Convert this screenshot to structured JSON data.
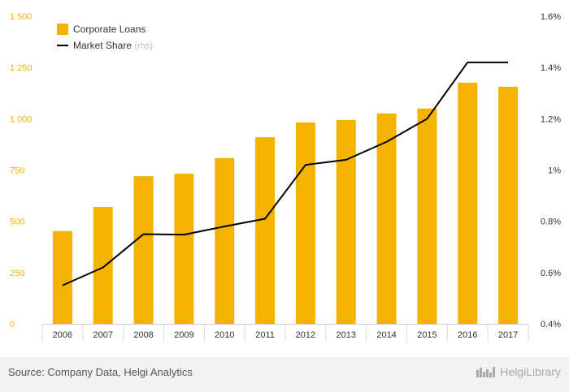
{
  "chart_data": {
    "type": "bar",
    "categories": [
      "2006",
      "2007",
      "2008",
      "2009",
      "2010",
      "2011",
      "2012",
      "2013",
      "2014",
      "2015",
      "2016",
      "2017"
    ],
    "series": [
      {
        "name": "Corporate Loans",
        "type": "bar",
        "axis": "left",
        "color": "#f5b301",
        "values": [
          452,
          570,
          720,
          732,
          808,
          910,
          982,
          994,
          1026,
          1050,
          1176,
          1156
        ]
      },
      {
        "name": "Market Share",
        "legend_suffix": "(rhs)",
        "type": "line",
        "axis": "right",
        "color": "#000000",
        "values": [
          0.55,
          0.62,
          0.75,
          0.748,
          0.78,
          0.81,
          1.02,
          1.04,
          1.11,
          1.2,
          1.42,
          1.42
        ]
      }
    ],
    "y_left": {
      "ylim": [
        0,
        1500
      ],
      "ticks": [
        0,
        250,
        500,
        750,
        1000,
        1250,
        1500
      ],
      "tick_labels": [
        "0",
        "250",
        "500",
        "750",
        "1 000",
        "1 250",
        "1 500"
      ],
      "color": "#f5b301"
    },
    "y_right": {
      "ylim": [
        0.4,
        1.6
      ],
      "ticks": [
        0.4,
        0.6,
        0.8,
        1.0,
        1.2,
        1.4,
        1.6
      ],
      "tick_labels": [
        "0.4%",
        "0.6%",
        "0.8%",
        "1%",
        "1.2%",
        "1.4%",
        "1.6%"
      ]
    },
    "grid": false,
    "legend": {
      "placement": "top-left"
    }
  },
  "footer": {
    "source": "Source: Company Data, Helgi Analytics",
    "brand": "HelgiLibrary"
  }
}
